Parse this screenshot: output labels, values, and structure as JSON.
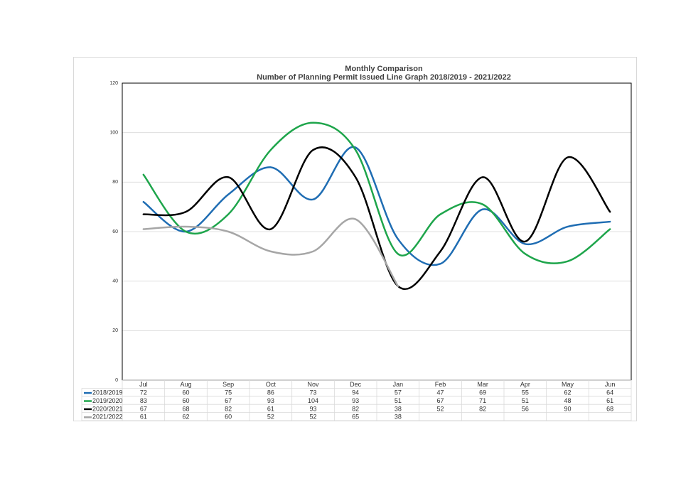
{
  "chart_data": {
    "type": "line",
    "title": "Monthly Comparison",
    "subtitle": "Number of Planning Permit Issued Line Graph 2018/2019 - 2021/2022",
    "categories": [
      "Jul",
      "Aug",
      "Sep",
      "Oct",
      "Nov",
      "Dec",
      "Jan",
      "Feb",
      "Mar",
      "Apr",
      "May",
      "Jun"
    ],
    "series": [
      {
        "name": "2018/2019",
        "color": "#1f6db3",
        "values": [
          72,
          60,
          75,
          86,
          73,
          94,
          57,
          47,
          69,
          55,
          62,
          64
        ]
      },
      {
        "name": "2019/2020",
        "color": "#1ea54b",
        "values": [
          83,
          60,
          67,
          93,
          104,
          93,
          51,
          67,
          71,
          51,
          48,
          61
        ]
      },
      {
        "name": "2020/2021",
        "color": "#000000",
        "values": [
          67,
          68,
          82,
          61,
          93,
          82,
          38,
          52,
          82,
          56,
          90,
          68
        ]
      },
      {
        "name": "2021/2022",
        "color": "#a6a6a6",
        "values": [
          61,
          62,
          60,
          52,
          52,
          65,
          38,
          null,
          null,
          null,
          null,
          null
        ]
      }
    ],
    "ylim": [
      0,
      120
    ],
    "yticks": [
      0,
      20,
      40,
      60,
      80,
      100,
      120
    ],
    "grid": true,
    "smooth": true,
    "data_table": true
  }
}
